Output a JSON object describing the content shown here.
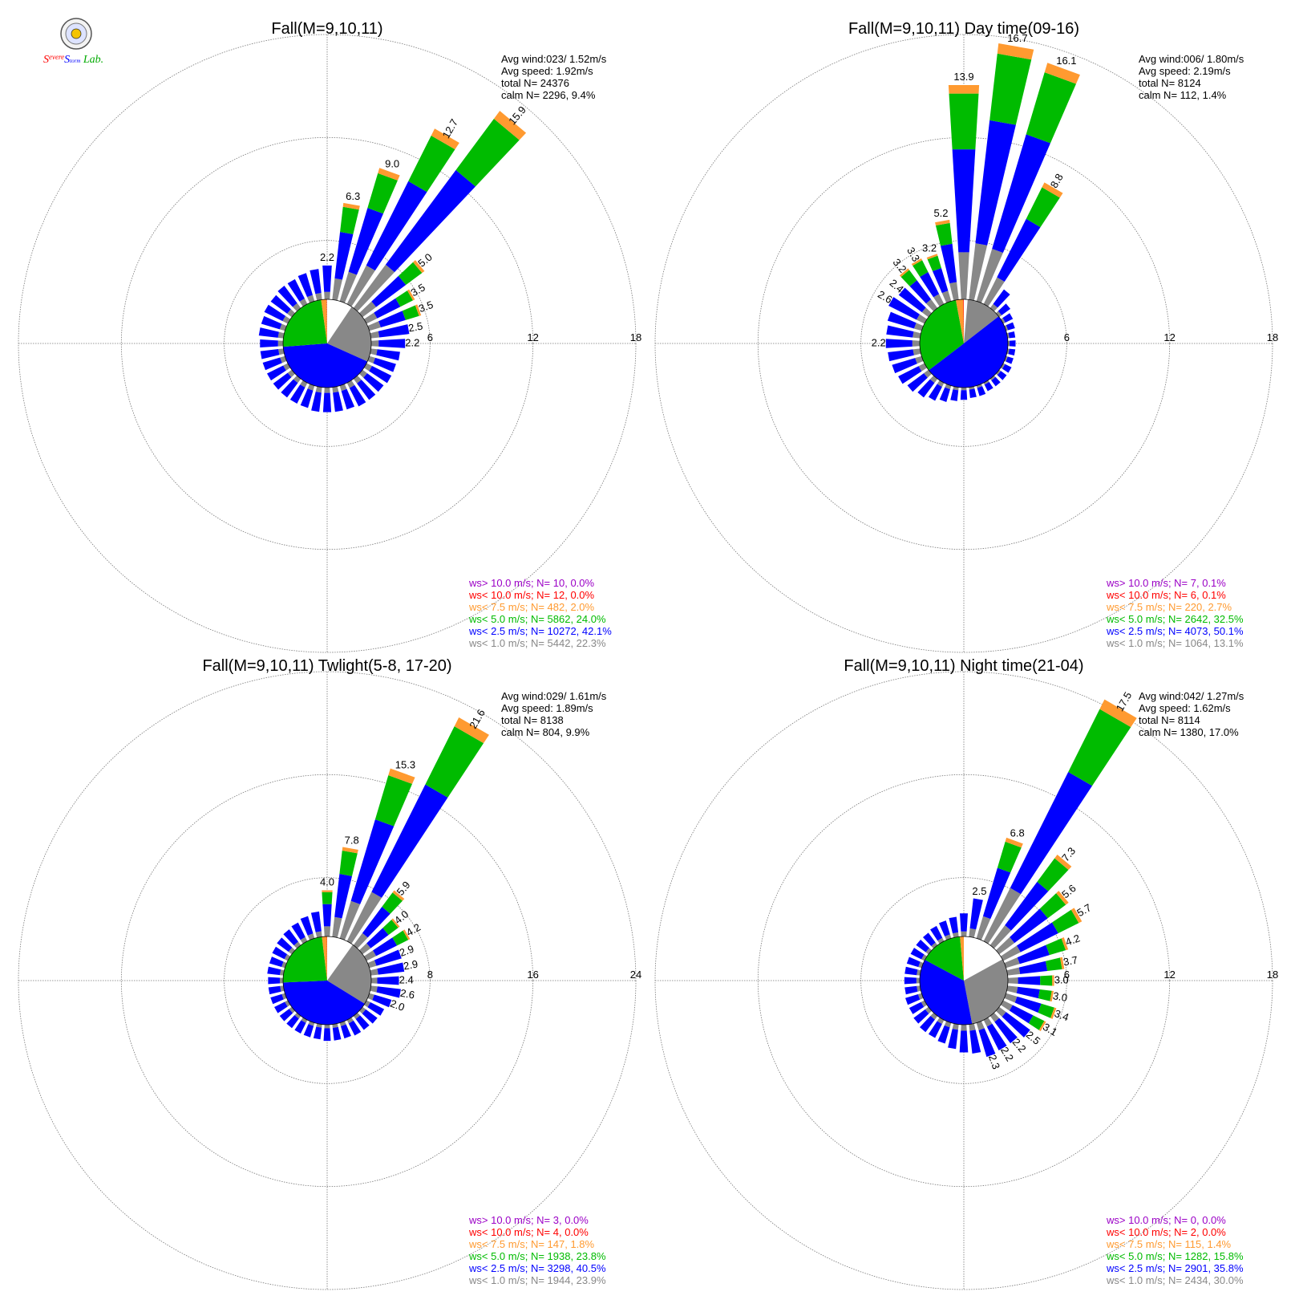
{
  "logo": {
    "text_parts": [
      "S",
      "evere",
      "S",
      "torm",
      " Lab."
    ]
  },
  "chart_data": [
    {
      "type": "windrose",
      "title": "Fall(M=9,10,11)",
      "radial_ticks": [
        "6",
        "12",
        "18"
      ],
      "rmax": 18,
      "stats": [
        "Avg wind:023/ 1.52m/s",
        "Avg speed: 1.92m/s",
        "total N=       24376",
        "calm N=   2296,   9.4%"
      ],
      "legend": [
        {
          "text": "ws> 10.0 m/s; N=     10,   0.0%",
          "color": "#9b00c6"
        },
        {
          "text": "ws< 10.0 m/s; N=     12,   0.0%",
          "color": "#ff0000"
        },
        {
          "text": "ws<  7.5 m/s; N=    482,   2.0%",
          "color": "#ff9a30"
        },
        {
          "text": "ws<  5.0 m/s; N=  5862, 24.0%",
          "color": "#00bb00"
        },
        {
          "text": "ws<  2.5 m/s; N= 10272, 42.1%",
          "color": "#0000ff"
        },
        {
          "text": "ws<  1.0 m/s; N=  5442, 22.3%",
          "color": "#888888"
        }
      ],
      "pie": [
        0.094,
        0.223,
        0.421,
        0.24,
        0.02,
        0.001
      ],
      "bars": [
        {
          "dir": 10,
          "value": 6.3,
          "label": "6.3"
        },
        {
          "dir": 20,
          "value": 9.0,
          "label": "9.0"
        },
        {
          "dir": 30,
          "value": 12.7,
          "label": "12.7"
        },
        {
          "dir": 40,
          "value": 15.9,
          "label": "15.9"
        },
        {
          "dir": 50,
          "value": 5.0,
          "label": "5.0"
        },
        {
          "dir": 60,
          "value": 3.5,
          "label": "3.5"
        },
        {
          "dir": 70,
          "value": 3.5,
          "label": "3.5"
        },
        {
          "dir": 80,
          "value": 2.5,
          "label": "2.5"
        },
        {
          "dir": 90,
          "value": 2.2,
          "label": "2.2"
        },
        {
          "dir": 100,
          "value": 1.9
        },
        {
          "dir": 110,
          "value": 1.8
        },
        {
          "dir": 120,
          "value": 1.8
        },
        {
          "dir": 130,
          "value": 1.7
        },
        {
          "dir": 140,
          "value": 1.7
        },
        {
          "dir": 150,
          "value": 1.7
        },
        {
          "dir": 160,
          "value": 1.6
        },
        {
          "dir": 170,
          "value": 1.6
        },
        {
          "dir": 180,
          "value": 1.6
        },
        {
          "dir": 190,
          "value": 1.6
        },
        {
          "dir": 200,
          "value": 1.5
        },
        {
          "dir": 210,
          "value": 1.5
        },
        {
          "dir": 220,
          "value": 1.5
        },
        {
          "dir": 230,
          "value": 1.5
        },
        {
          "dir": 240,
          "value": 1.5
        },
        {
          "dir": 250,
          "value": 1.5
        },
        {
          "dir": 260,
          "value": 1.5
        },
        {
          "dir": 270,
          "value": 1.5
        },
        {
          "dir": 280,
          "value": 1.6
        },
        {
          "dir": 290,
          "value": 1.6
        },
        {
          "dir": 300,
          "value": 1.7
        },
        {
          "dir": 310,
          "value": 1.7
        },
        {
          "dir": 320,
          "value": 1.8
        },
        {
          "dir": 330,
          "value": 1.8
        },
        {
          "dir": 340,
          "value": 1.9
        },
        {
          "dir": 350,
          "value": 2.0
        },
        {
          "dir": 0,
          "value": 2.2,
          "label": "2.2"
        }
      ]
    },
    {
      "type": "windrose",
      "title": "Fall(M=9,10,11) Day time(09-16)",
      "radial_ticks": [
        "6",
        "12",
        "18"
      ],
      "rmax": 18,
      "stats": [
        "Avg wind:006/ 1.80m/s",
        "Avg speed: 2.19m/s",
        "total N=        8124",
        "calm N=    112,   1.4%"
      ],
      "legend": [
        {
          "text": "ws> 10.0 m/s; N=      7,   0.1%",
          "color": "#9b00c6"
        },
        {
          "text": "ws< 10.0 m/s; N=      6,   0.1%",
          "color": "#ff0000"
        },
        {
          "text": "ws<  7.5 m/s; N=    220,   2.7%",
          "color": "#ff9a30"
        },
        {
          "text": "ws<  5.0 m/s; N=  2642, 32.5%",
          "color": "#00bb00"
        },
        {
          "text": "ws<  2.5 m/s; N=  4073, 50.1%",
          "color": "#0000ff"
        },
        {
          "text": "ws<  1.0 m/s; N=  1064, 13.1%",
          "color": "#888888"
        }
      ],
      "pie": [
        0.014,
        0.131,
        0.501,
        0.325,
        0.027,
        0.002
      ],
      "bars": [
        {
          "dir": 0,
          "value": 13.9,
          "label": "13.9"
        },
        {
          "dir": 10,
          "value": 16.7,
          "label": "16.7"
        },
        {
          "dir": 20,
          "value": 16.1,
          "label": "16.1"
        },
        {
          "dir": 30,
          "value": 8.8,
          "label": "8.8"
        },
        {
          "dir": 40,
          "value": 1.5
        },
        {
          "dir": 50,
          "value": 0.9
        },
        {
          "dir": 60,
          "value": 0.7
        },
        {
          "dir": 70,
          "value": 0.6
        },
        {
          "dir": 80,
          "value": 0.5
        },
        {
          "dir": 90,
          "value": 0.5
        },
        {
          "dir": 100,
          "value": 0.5
        },
        {
          "dir": 110,
          "value": 0.5
        },
        {
          "dir": 120,
          "value": 0.6
        },
        {
          "dir": 130,
          "value": 0.6
        },
        {
          "dir": 140,
          "value": 0.6
        },
        {
          "dir": 150,
          "value": 0.6
        },
        {
          "dir": 160,
          "value": 0.7
        },
        {
          "dir": 170,
          "value": 0.7
        },
        {
          "dir": 180,
          "value": 0.8
        },
        {
          "dir": 190,
          "value": 0.9
        },
        {
          "dir": 200,
          "value": 1.1
        },
        {
          "dir": 210,
          "value": 1.3
        },
        {
          "dir": 220,
          "value": 1.5
        },
        {
          "dir": 230,
          "value": 1.7
        },
        {
          "dir": 240,
          "value": 1.9
        },
        {
          "dir": 250,
          "value": 2.0
        },
        {
          "dir": 260,
          "value": 2.1
        },
        {
          "dir": 270,
          "value": 2.2,
          "label": "2.2"
        },
        {
          "dir": 280,
          "value": 2.2
        },
        {
          "dir": 290,
          "value": 2.3
        },
        {
          "dir": 300,
          "value": 2.6,
          "label": "2.6"
        },
        {
          "dir": 310,
          "value": 2.4,
          "label": "2.4"
        },
        {
          "dir": 320,
          "value": 3.2,
          "label": "3.2"
        },
        {
          "dir": 330,
          "value": 3.3,
          "label": "3.3"
        },
        {
          "dir": 340,
          "value": 3.2,
          "label": "3.2"
        },
        {
          "dir": 350,
          "value": 5.2,
          "label": "5.2"
        }
      ]
    },
    {
      "type": "windrose",
      "title": "Fall(M=9,10,11) Twlight(5-8, 17-20)",
      "radial_ticks": [
        "8",
        "16",
        "24"
      ],
      "rmax": 24,
      "stats": [
        "Avg wind:029/ 1.61m/s",
        "Avg speed: 1.89m/s",
        "total N=        8138",
        "calm N=    804,   9.9%"
      ],
      "legend": [
        {
          "text": "ws> 10.0 m/s; N=      3,   0.0%",
          "color": "#9b00c6"
        },
        {
          "text": "ws< 10.0 m/s; N=      4,   0.0%",
          "color": "#ff0000"
        },
        {
          "text": "ws<  7.5 m/s; N=    147,   1.8%",
          "color": "#ff9a30"
        },
        {
          "text": "ws<  5.0 m/s; N=  1938, 23.8%",
          "color": "#00bb00"
        },
        {
          "text": "ws<  2.5 m/s; N=  3298, 40.5%",
          "color": "#0000ff"
        },
        {
          "text": "ws<  1.0 m/s; N=  1944, 23.9%",
          "color": "#888888"
        }
      ],
      "pie": [
        0.099,
        0.239,
        0.405,
        0.238,
        0.018,
        0.001
      ],
      "bars": [
        {
          "dir": 0,
          "value": 4.0,
          "label": "4.0"
        },
        {
          "dir": 10,
          "value": 7.8,
          "label": "7.8"
        },
        {
          "dir": 20,
          "value": 15.3,
          "label": "15.3"
        },
        {
          "dir": 30,
          "value": 21.6,
          "label": "21.6"
        },
        {
          "dir": 40,
          "value": 5.9,
          "label": "5.9"
        },
        {
          "dir": 50,
          "value": 4.0,
          "label": "4.0"
        },
        {
          "dir": 60,
          "value": 4.2,
          "label": "4.2"
        },
        {
          "dir": 70,
          "value": 2.9,
          "label": "2.9"
        },
        {
          "dir": 80,
          "value": 2.9,
          "label": "2.9"
        },
        {
          "dir": 90,
          "value": 2.4,
          "label": "2.4"
        },
        {
          "dir": 100,
          "value": 2.6,
          "label": "2.6"
        },
        {
          "dir": 110,
          "value": 2.0,
          "label": "2.0"
        },
        {
          "dir": 120,
          "value": 1.7
        },
        {
          "dir": 130,
          "value": 1.6
        },
        {
          "dir": 140,
          "value": 1.5
        },
        {
          "dir": 150,
          "value": 1.5
        },
        {
          "dir": 160,
          "value": 1.4
        },
        {
          "dir": 170,
          "value": 1.4
        },
        {
          "dir": 180,
          "value": 1.4
        },
        {
          "dir": 190,
          "value": 1.3
        },
        {
          "dir": 200,
          "value": 1.3
        },
        {
          "dir": 210,
          "value": 1.3
        },
        {
          "dir": 220,
          "value": 1.3
        },
        {
          "dir": 230,
          "value": 1.3
        },
        {
          "dir": 240,
          "value": 1.3
        },
        {
          "dir": 250,
          "value": 1.3
        },
        {
          "dir": 260,
          "value": 1.3
        },
        {
          "dir": 270,
          "value": 1.3
        },
        {
          "dir": 280,
          "value": 1.4
        },
        {
          "dir": 290,
          "value": 1.4
        },
        {
          "dir": 300,
          "value": 1.5
        },
        {
          "dir": 310,
          "value": 1.6
        },
        {
          "dir": 320,
          "value": 1.7
        },
        {
          "dir": 330,
          "value": 1.8
        },
        {
          "dir": 340,
          "value": 2.0
        },
        {
          "dir": 350,
          "value": 2.2
        }
      ]
    },
    {
      "type": "windrose",
      "title": "Fall(M=9,10,11) Night time(21-04)",
      "radial_ticks": [
        "6",
        "12",
        "18"
      ],
      "rmax": 18,
      "stats": [
        "Avg wind:042/ 1.27m/s",
        "Avg speed: 1.62m/s",
        "total N=        8114",
        "calm N=  1380,  17.0%"
      ],
      "legend": [
        {
          "text": "ws> 10.0 m/s; N=      0,   0.0%",
          "color": "#9b00c6"
        },
        {
          "text": "ws< 10.0 m/s; N=      2,   0.0%",
          "color": "#ff0000"
        },
        {
          "text": "ws<  7.5 m/s; N=    115,   1.4%",
          "color": "#ff9a30"
        },
        {
          "text": "ws<  5.0 m/s; N=  1282, 15.8%",
          "color": "#00bb00"
        },
        {
          "text": "ws<  2.5 m/s; N=  2901, 35.8%",
          "color": "#0000ff"
        },
        {
          "text": "ws<  1.0 m/s; N=  2434, 30.0%",
          "color": "#888888"
        }
      ],
      "pie": [
        0.17,
        0.3,
        0.358,
        0.158,
        0.014,
        0.0
      ],
      "bars": [
        {
          "dir": 0,
          "value": 1.5
        },
        {
          "dir": 10,
          "value": 2.5,
          "label": "2.5"
        },
        {
          "dir": 20,
          "value": 6.8,
          "label": "6.8"
        },
        {
          "dir": 30,
          "value": 17.5,
          "label": "17.5"
        },
        {
          "dir": 40,
          "value": 7.3,
          "label": "7.3"
        },
        {
          "dir": 50,
          "value": 5.6,
          "label": "5.6"
        },
        {
          "dir": 60,
          "value": 5.7,
          "label": "5.7"
        },
        {
          "dir": 70,
          "value": 4.2,
          "label": "4.2"
        },
        {
          "dir": 80,
          "value": 3.7,
          "label": "3.7"
        },
        {
          "dir": 90,
          "value": 3.0,
          "label": "3.0"
        },
        {
          "dir": 100,
          "value": 3.0,
          "label": "3.0"
        },
        {
          "dir": 110,
          "value": 3.4,
          "label": "3.4"
        },
        {
          "dir": 120,
          "value": 3.1,
          "label": "3.1"
        },
        {
          "dir": 130,
          "value": 2.5,
          "label": "2.5"
        },
        {
          "dir": 140,
          "value": 2.2,
          "label": "2.2"
        },
        {
          "dir": 150,
          "value": 2.2,
          "label": "2.2"
        },
        {
          "dir": 160,
          "value": 2.3,
          "label": "2.3"
        },
        {
          "dir": 170,
          "value": 1.9
        },
        {
          "dir": 180,
          "value": 1.8
        },
        {
          "dir": 190,
          "value": 1.6
        },
        {
          "dir": 200,
          "value": 1.4
        },
        {
          "dir": 210,
          "value": 1.3
        },
        {
          "dir": 220,
          "value": 1.3
        },
        {
          "dir": 230,
          "value": 1.2
        },
        {
          "dir": 240,
          "value": 1.1
        },
        {
          "dir": 250,
          "value": 1.1
        },
        {
          "dir": 260,
          "value": 1.0
        },
        {
          "dir": 270,
          "value": 1.0
        },
        {
          "dir": 280,
          "value": 1.0
        },
        {
          "dir": 290,
          "value": 1.0
        },
        {
          "dir": 300,
          "value": 1.0
        },
        {
          "dir": 310,
          "value": 1.0
        },
        {
          "dir": 320,
          "value": 1.0
        },
        {
          "dir": 330,
          "value": 1.1
        },
        {
          "dir": 340,
          "value": 1.2
        },
        {
          "dir": 350,
          "value": 1.3
        }
      ]
    }
  ]
}
